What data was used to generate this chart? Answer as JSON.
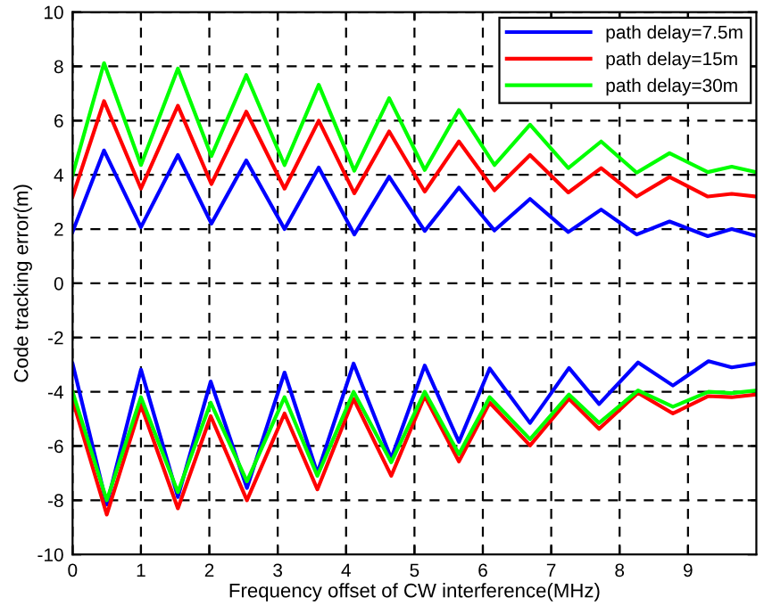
{
  "chart_data": {
    "type": "line",
    "xlabel": "Frequency offset of CW interference(MHz)",
    "ylabel": "Code tracking error(m)",
    "xlim": [
      0,
      10
    ],
    "ylim": [
      -10,
      10
    ],
    "xticks": [
      0,
      1,
      2,
      3,
      4,
      5,
      6,
      7,
      8,
      9
    ],
    "yticks": [
      -10,
      -8,
      -6,
      -4,
      -2,
      0,
      2,
      4,
      6,
      8,
      10
    ],
    "grid": true,
    "legend": "top right",
    "marker": "none",
    "line_style": "solid",
    "series": [
      {
        "name": "path delay=7.5m",
        "color": "#0000ff",
        "x": [
          0,
          0.46,
          1.0,
          1.54,
          2.03,
          2.54,
          3.1,
          3.6,
          4.12,
          4.63,
          5.15,
          5.65,
          6.17,
          6.69,
          7.25,
          7.73,
          8.25,
          8.73,
          9.29,
          9.64,
          10
        ],
        "values": [
          1.9,
          4.9,
          2.07,
          4.73,
          2.2,
          4.53,
          2.0,
          4.27,
          1.8,
          3.93,
          1.93,
          3.53,
          1.95,
          3.11,
          1.89,
          2.72,
          1.8,
          2.28,
          1.74,
          2.0,
          1.75
        ]
      },
      {
        "name": "path delay=15m",
        "color": "#ff0000",
        "x": [
          0,
          0.46,
          1.0,
          1.54,
          2.03,
          2.54,
          3.1,
          3.6,
          4.12,
          4.63,
          5.15,
          5.65,
          6.17,
          6.69,
          7.25,
          7.73,
          8.25,
          8.73,
          9.29,
          9.64,
          10
        ],
        "values": [
          3.2,
          6.72,
          3.49,
          6.55,
          3.66,
          6.33,
          3.49,
          6.0,
          3.32,
          5.6,
          3.38,
          5.23,
          3.43,
          4.73,
          3.35,
          4.25,
          3.2,
          3.92,
          3.2,
          3.3,
          3.2
        ]
      },
      {
        "name": "path delay=30m",
        "color": "#00ff00",
        "x": [
          0,
          0.46,
          1.0,
          1.54,
          2.03,
          2.54,
          3.1,
          3.6,
          4.12,
          4.63,
          5.15,
          5.65,
          6.17,
          6.69,
          7.25,
          7.73,
          8.25,
          8.73,
          9.29,
          9.64,
          10
        ],
        "values": [
          4.0,
          8.12,
          4.36,
          7.92,
          4.69,
          7.68,
          4.36,
          7.32,
          4.15,
          6.83,
          4.18,
          6.39,
          4.36,
          5.85,
          4.25,
          5.23,
          4.08,
          4.8,
          4.1,
          4.3,
          4.1
        ]
      },
      {
        "color": "#0000ff",
        "x": [
          0,
          0.5,
          1.0,
          1.54,
          2.02,
          2.55,
          3.1,
          3.58,
          4.11,
          4.66,
          5.15,
          5.65,
          6.1,
          6.69,
          7.26,
          7.7,
          8.27,
          8.78,
          9.3,
          9.64,
          10
        ],
        "values": [
          -2.96,
          -8.16,
          -3.18,
          -7.88,
          -3.62,
          -7.55,
          -3.29,
          -7.0,
          -2.96,
          -6.46,
          -3.03,
          -5.85,
          -3.14,
          -5.15,
          -3.12,
          -4.45,
          -2.92,
          -3.77,
          -2.87,
          -3.1,
          -2.96
        ]
      },
      {
        "color": "#ff0000",
        "x": [
          0,
          0.5,
          1.0,
          1.54,
          2.02,
          2.55,
          3.1,
          3.58,
          4.11,
          4.66,
          5.15,
          5.65,
          6.1,
          6.69,
          7.26,
          7.7,
          8.27,
          8.78,
          9.3,
          9.64,
          10
        ],
        "values": [
          -4.3,
          -8.53,
          -4.49,
          -8.3,
          -4.9,
          -8.0,
          -4.8,
          -7.6,
          -4.26,
          -7.1,
          -4.16,
          -6.57,
          -4.4,
          -5.98,
          -4.26,
          -5.37,
          -4.04,
          -4.8,
          -4.16,
          -4.2,
          -4.1
        ]
      },
      {
        "color": "#00ff00",
        "x": [
          0,
          0.5,
          1.0,
          1.54,
          2.02,
          2.55,
          3.1,
          3.58,
          4.11,
          4.66,
          5.15,
          5.65,
          6.1,
          6.69,
          7.26,
          7.7,
          8.27,
          8.78,
          9.3,
          9.64,
          10
        ],
        "values": [
          -4.0,
          -8.0,
          -4.2,
          -7.7,
          -4.4,
          -7.3,
          -4.2,
          -7.1,
          -4.0,
          -6.6,
          -4.0,
          -6.3,
          -4.2,
          -5.75,
          -4.1,
          -5.15,
          -3.95,
          -4.55,
          -4.0,
          -4.05,
          -3.95
        ]
      }
    ]
  }
}
